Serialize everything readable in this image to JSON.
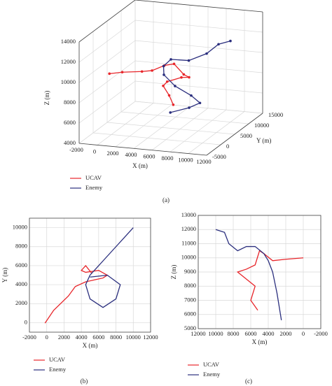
{
  "chart_data": [
    {
      "type": "line3d",
      "panel_label": "(a)",
      "xlabel": "X (m)",
      "ylabel": "Y (m)",
      "zlabel": "Z (m)",
      "xlim": [
        -2000,
        12000
      ],
      "ylim": [
        -5000,
        15000
      ],
      "zlim": [
        4000,
        14000
      ],
      "xticks": [
        -2000,
        0,
        2000,
        4000,
        6000,
        8000,
        10000,
        12000
      ],
      "yticks": [
        -5000,
        0,
        5000,
        10000,
        15000
      ],
      "zticks": [
        4000,
        6000,
        8000,
        10000,
        12000,
        14000
      ],
      "grid": true,
      "series": [
        {
          "name": "UCAV",
          "color": "#e8262b",
          "x": [
            -200,
            800,
            2500,
            3300,
            4500,
            5500,
            6500,
            7000,
            6000,
            4500,
            4000,
            4500,
            5200
          ],
          "y": [
            -50,
            1300,
            2800,
            3800,
            4300,
            4500,
            4700,
            5000,
            5500,
            5300,
            5500,
            6000,
            5200
          ],
          "z": [
            10000,
            9950,
            9850,
            9800,
            10300,
            10500,
            9500,
            9200,
            9000,
            8500,
            8000,
            7000,
            6300
          ]
        },
        {
          "name": "Enemy",
          "color": "#2b2f7e",
          "x": [
            10000,
            9000,
            8000,
            6500,
            5000,
            4500,
            5000,
            6500,
            8000,
            8500,
            7000,
            5000
          ],
          "y": [
            10000,
            9000,
            8000,
            6500,
            5000,
            4000,
            2500,
            1600,
            2500,
            4000,
            5000,
            4800
          ],
          "z": [
            12000,
            11800,
            11000,
            10500,
            10800,
            10300,
            9800,
            9000,
            8000,
            7000,
            6200,
            5600
          ]
        }
      ]
    },
    {
      "type": "line",
      "panel_label": "(b)",
      "xlabel": "X (m)",
      "ylabel": "Y (m)",
      "xlim": [
        -2000,
        12000
      ],
      "ylim": [
        -1000,
        11000
      ],
      "xticks": [
        -2000,
        0,
        2000,
        4000,
        6000,
        8000,
        10000,
        12000
      ],
      "yticks": [
        0,
        2000,
        4000,
        6000,
        8000,
        10000
      ],
      "grid": true,
      "series": [
        {
          "name": "UCAV",
          "color": "#e8262b",
          "x": [
            -200,
            800,
            2500,
            3300,
            4500,
            5500,
            6500,
            7000,
            6000,
            4500,
            4000,
            4500,
            5200
          ],
          "values": [
            -50,
            1300,
            2800,
            3800,
            4300,
            4500,
            4700,
            5000,
            5500,
            5300,
            5500,
            6000,
            5200
          ]
        },
        {
          "name": "Enemy",
          "color": "#2b2f7e",
          "x": [
            10000,
            9000,
            8000,
            6500,
            5000,
            4500,
            5000,
            6500,
            8000,
            8500,
            7000,
            5000
          ],
          "values": [
            10000,
            9000,
            8000,
            6500,
            5000,
            4000,
            2500,
            1600,
            2500,
            4000,
            5000,
            4800
          ]
        }
      ]
    },
    {
      "type": "line",
      "panel_label": "(c)",
      "xlabel": "X (m)",
      "ylabel": "Z (m)",
      "xlim": [
        12000,
        -2000
      ],
      "ylim": [
        5000,
        13000
      ],
      "xticks": [
        12000,
        10000,
        8000,
        6000,
        4000,
        2000,
        0,
        -2000
      ],
      "yticks": [
        5000,
        6000,
        7000,
        8000,
        9000,
        10000,
        11000,
        12000,
        13000
      ],
      "grid": true,
      "series": [
        {
          "name": "UCAV",
          "color": "#e8262b",
          "x": [
            0,
            2000,
            3500,
            4500,
            5000,
            5500,
            6500,
            7500,
            6500,
            5500,
            6000,
            5200
          ],
          "values": [
            10000,
            9900,
            9800,
            10300,
            10500,
            9500,
            9200,
            9000,
            8500,
            8000,
            7000,
            6300
          ]
        },
        {
          "name": "Enemy",
          "color": "#2b2f7e",
          "x": [
            10000,
            9000,
            8500,
            7500,
            6500,
            5500,
            4500,
            4000,
            3500,
            3000,
            2500
          ],
          "values": [
            12000,
            11800,
            11000,
            10500,
            10800,
            10800,
            10300,
            9800,
            9000,
            7500,
            5600
          ]
        }
      ]
    }
  ]
}
